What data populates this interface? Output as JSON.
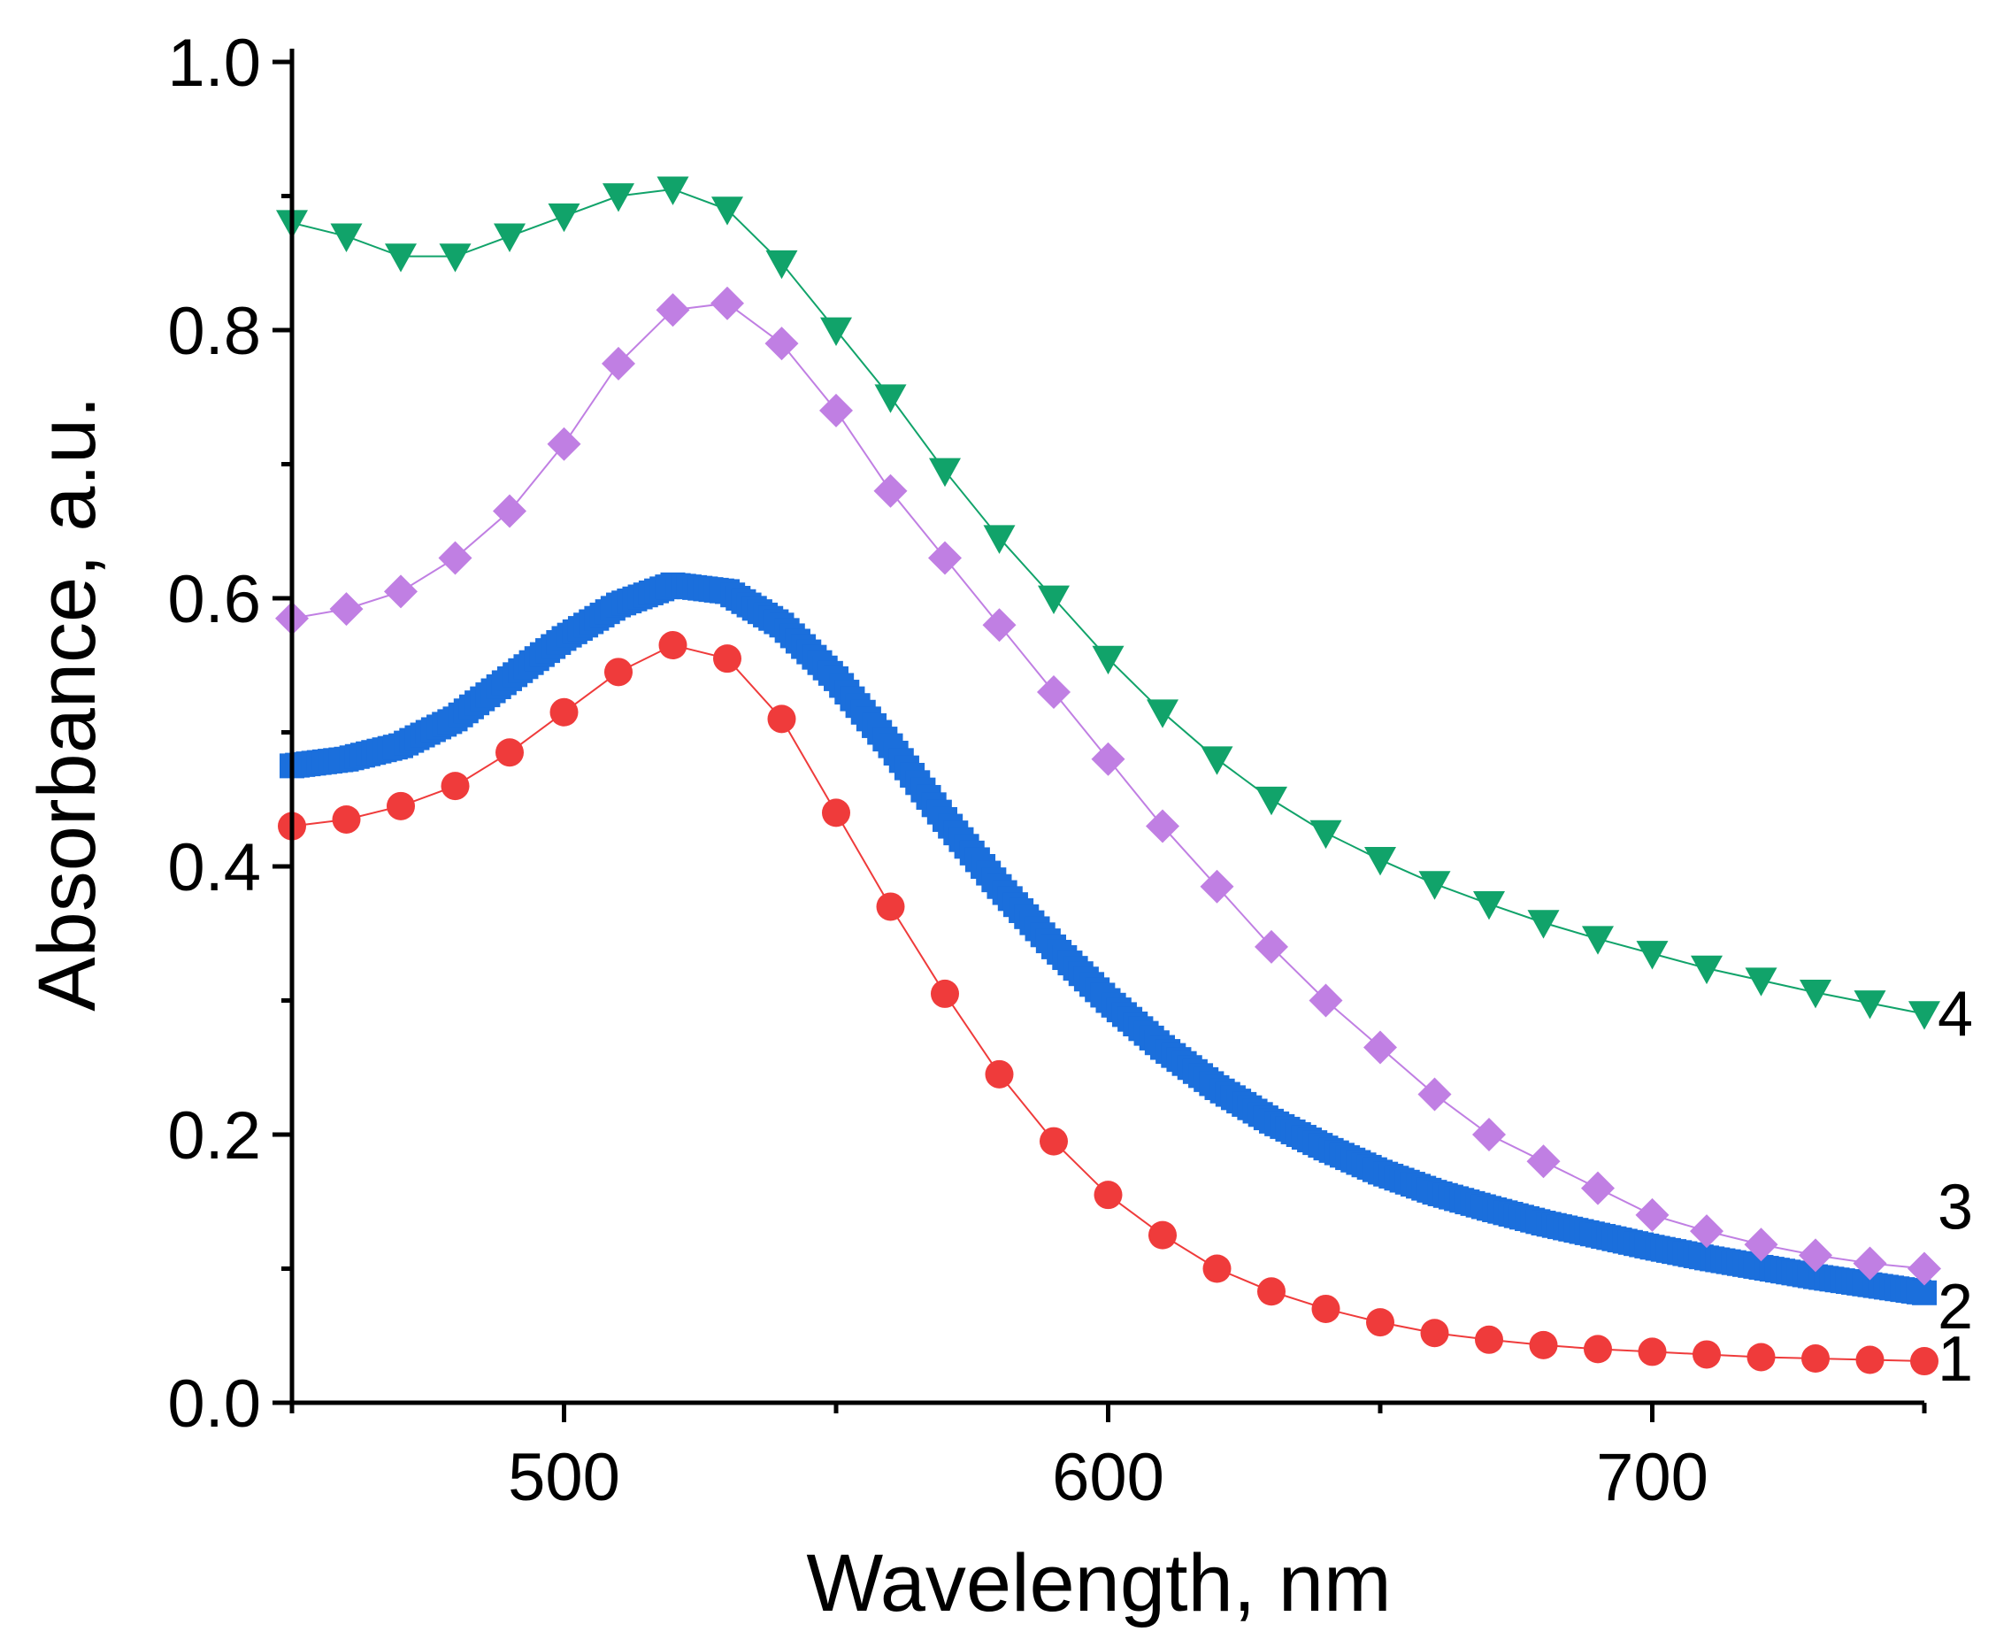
{
  "chart_data": {
    "type": "scatter",
    "title": "",
    "xlabel": "Wavelength, nm",
    "ylabel": "Absorbance, a.u.",
    "xlim": [
      450,
      750
    ],
    "ylim": [
      0.0,
      1.0
    ],
    "x_ticks": [
      500,
      600,
      700
    ],
    "x_tick_labels": [
      "500",
      "600",
      "700"
    ],
    "x_minor_ticks": [
      450,
      550,
      650,
      750
    ],
    "y_ticks": [
      0.0,
      0.2,
      0.4,
      0.6,
      0.8,
      1.0
    ],
    "y_tick_labels": [
      "0.0",
      "0.2",
      "0.4",
      "0.6",
      "0.8",
      "1.0"
    ],
    "y_minor_ticks": [
      0.1,
      0.3,
      0.5,
      0.7,
      0.9
    ],
    "grid": false,
    "legend": "none",
    "series": [
      {
        "name": "1",
        "marker": "circle",
        "color": "#ef3b3b",
        "x": [
          450,
          460,
          470,
          480,
          490,
          500,
          510,
          520,
          530,
          540,
          550,
          560,
          570,
          580,
          590,
          600,
          610,
          620,
          630,
          640,
          650,
          660,
          670,
          680,
          690,
          700,
          710,
          720,
          730,
          740,
          750
        ],
        "values": [
          0.43,
          0.435,
          0.445,
          0.46,
          0.485,
          0.515,
          0.545,
          0.565,
          0.555,
          0.51,
          0.44,
          0.37,
          0.305,
          0.245,
          0.195,
          0.155,
          0.125,
          0.1,
          0.083,
          0.07,
          0.06,
          0.052,
          0.047,
          0.043,
          0.04,
          0.038,
          0.036,
          0.034,
          0.033,
          0.032,
          0.031
        ]
      },
      {
        "name": "2",
        "marker": "square",
        "color": "#1b6fdc",
        "x": [
          450,
          460,
          470,
          480,
          490,
          500,
          510,
          520,
          530,
          540,
          550,
          560,
          570,
          580,
          590,
          600,
          610,
          620,
          630,
          640,
          650,
          660,
          670,
          680,
          690,
          700,
          710,
          720,
          730,
          740,
          750
        ],
        "values": [
          0.475,
          0.48,
          0.49,
          0.51,
          0.54,
          0.57,
          0.595,
          0.61,
          0.605,
          0.58,
          0.54,
          0.49,
          0.435,
          0.385,
          0.34,
          0.3,
          0.265,
          0.235,
          0.21,
          0.19,
          0.172,
          0.157,
          0.145,
          0.134,
          0.125,
          0.116,
          0.108,
          0.101,
          0.094,
          0.088,
          0.082
        ]
      },
      {
        "name": "3",
        "marker": "diamond",
        "color": "#c07fe3",
        "x": [
          450,
          460,
          470,
          480,
          490,
          500,
          510,
          520,
          530,
          540,
          550,
          560,
          570,
          580,
          590,
          600,
          610,
          620,
          630,
          640,
          650,
          660,
          670,
          680,
          690,
          700,
          710,
          720,
          730,
          740,
          750
        ],
        "values": [
          0.585,
          0.592,
          0.605,
          0.63,
          0.665,
          0.715,
          0.775,
          0.815,
          0.82,
          0.79,
          0.74,
          0.68,
          0.63,
          0.58,
          0.53,
          0.48,
          0.43,
          0.385,
          0.34,
          0.3,
          0.265,
          0.23,
          0.2,
          0.18,
          0.16,
          0.14,
          0.128,
          0.118,
          0.11,
          0.104,
          0.1
        ]
      },
      {
        "name": "4",
        "marker": "triangle-down",
        "color": "#11a36a",
        "x": [
          450,
          460,
          470,
          480,
          490,
          500,
          510,
          520,
          530,
          540,
          550,
          560,
          570,
          580,
          590,
          600,
          610,
          620,
          630,
          640,
          650,
          660,
          670,
          680,
          690,
          700,
          710,
          720,
          730,
          740,
          750
        ],
        "values": [
          0.88,
          0.87,
          0.855,
          0.855,
          0.87,
          0.885,
          0.9,
          0.905,
          0.89,
          0.85,
          0.8,
          0.75,
          0.695,
          0.645,
          0.6,
          0.555,
          0.515,
          0.48,
          0.45,
          0.425,
          0.405,
          0.387,
          0.372,
          0.358,
          0.346,
          0.335,
          0.324,
          0.315,
          0.306,
          0.298,
          0.29
        ]
      }
    ]
  }
}
